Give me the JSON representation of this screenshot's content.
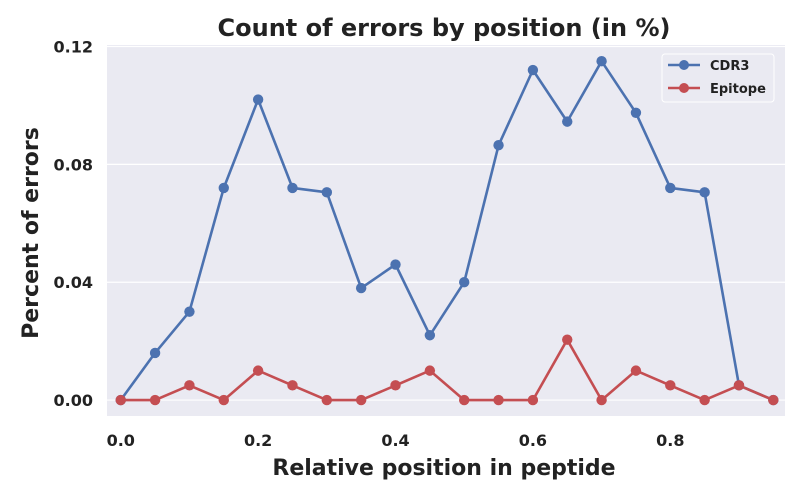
{
  "chart_data": {
    "type": "line",
    "title": "Count of errors by position (in %)",
    "xlabel": "Relative position in peptide",
    "ylabel": "Percent of errors",
    "x": [
      0.0,
      0.05,
      0.1,
      0.15,
      0.2,
      0.25,
      0.3,
      0.35,
      0.4,
      0.45,
      0.5,
      0.55,
      0.6,
      0.65,
      0.7,
      0.75,
      0.8,
      0.85,
      0.9,
      0.95
    ],
    "xlim": [
      -0.02,
      0.967
    ],
    "ylim": [
      -0.0054,
      0.1205
    ],
    "xticks": [
      0.0,
      0.2,
      0.4,
      0.6,
      0.8
    ],
    "xtick_labels": [
      "0.0",
      "0.2",
      "0.4",
      "0.6",
      "0.8"
    ],
    "yticks": [
      0.0,
      0.04,
      0.08,
      0.12
    ],
    "ytick_labels": [
      "0.00",
      "0.04",
      "0.08",
      "0.12"
    ],
    "grid": true,
    "legend_position": "top-right",
    "series": [
      {
        "name": "CDR3",
        "color": "#4c72b0",
        "values": [
          0.0,
          0.016,
          0.03,
          0.072,
          0.102,
          0.072,
          0.0705,
          0.038,
          0.046,
          0.022,
          0.04,
          0.0865,
          0.112,
          0.0945,
          0.115,
          0.0975,
          0.072,
          0.0705,
          0.005,
          0.0
        ]
      },
      {
        "name": "Epitope",
        "color": "#c44e52",
        "values": [
          0.0,
          0.0,
          0.005,
          0.0,
          0.01,
          0.005,
          0.0,
          0.0,
          0.005,
          0.01,
          0.0,
          0.0,
          0.0,
          0.0205,
          0.0,
          0.01,
          0.005,
          0.0,
          0.005,
          0.0
        ]
      }
    ]
  }
}
